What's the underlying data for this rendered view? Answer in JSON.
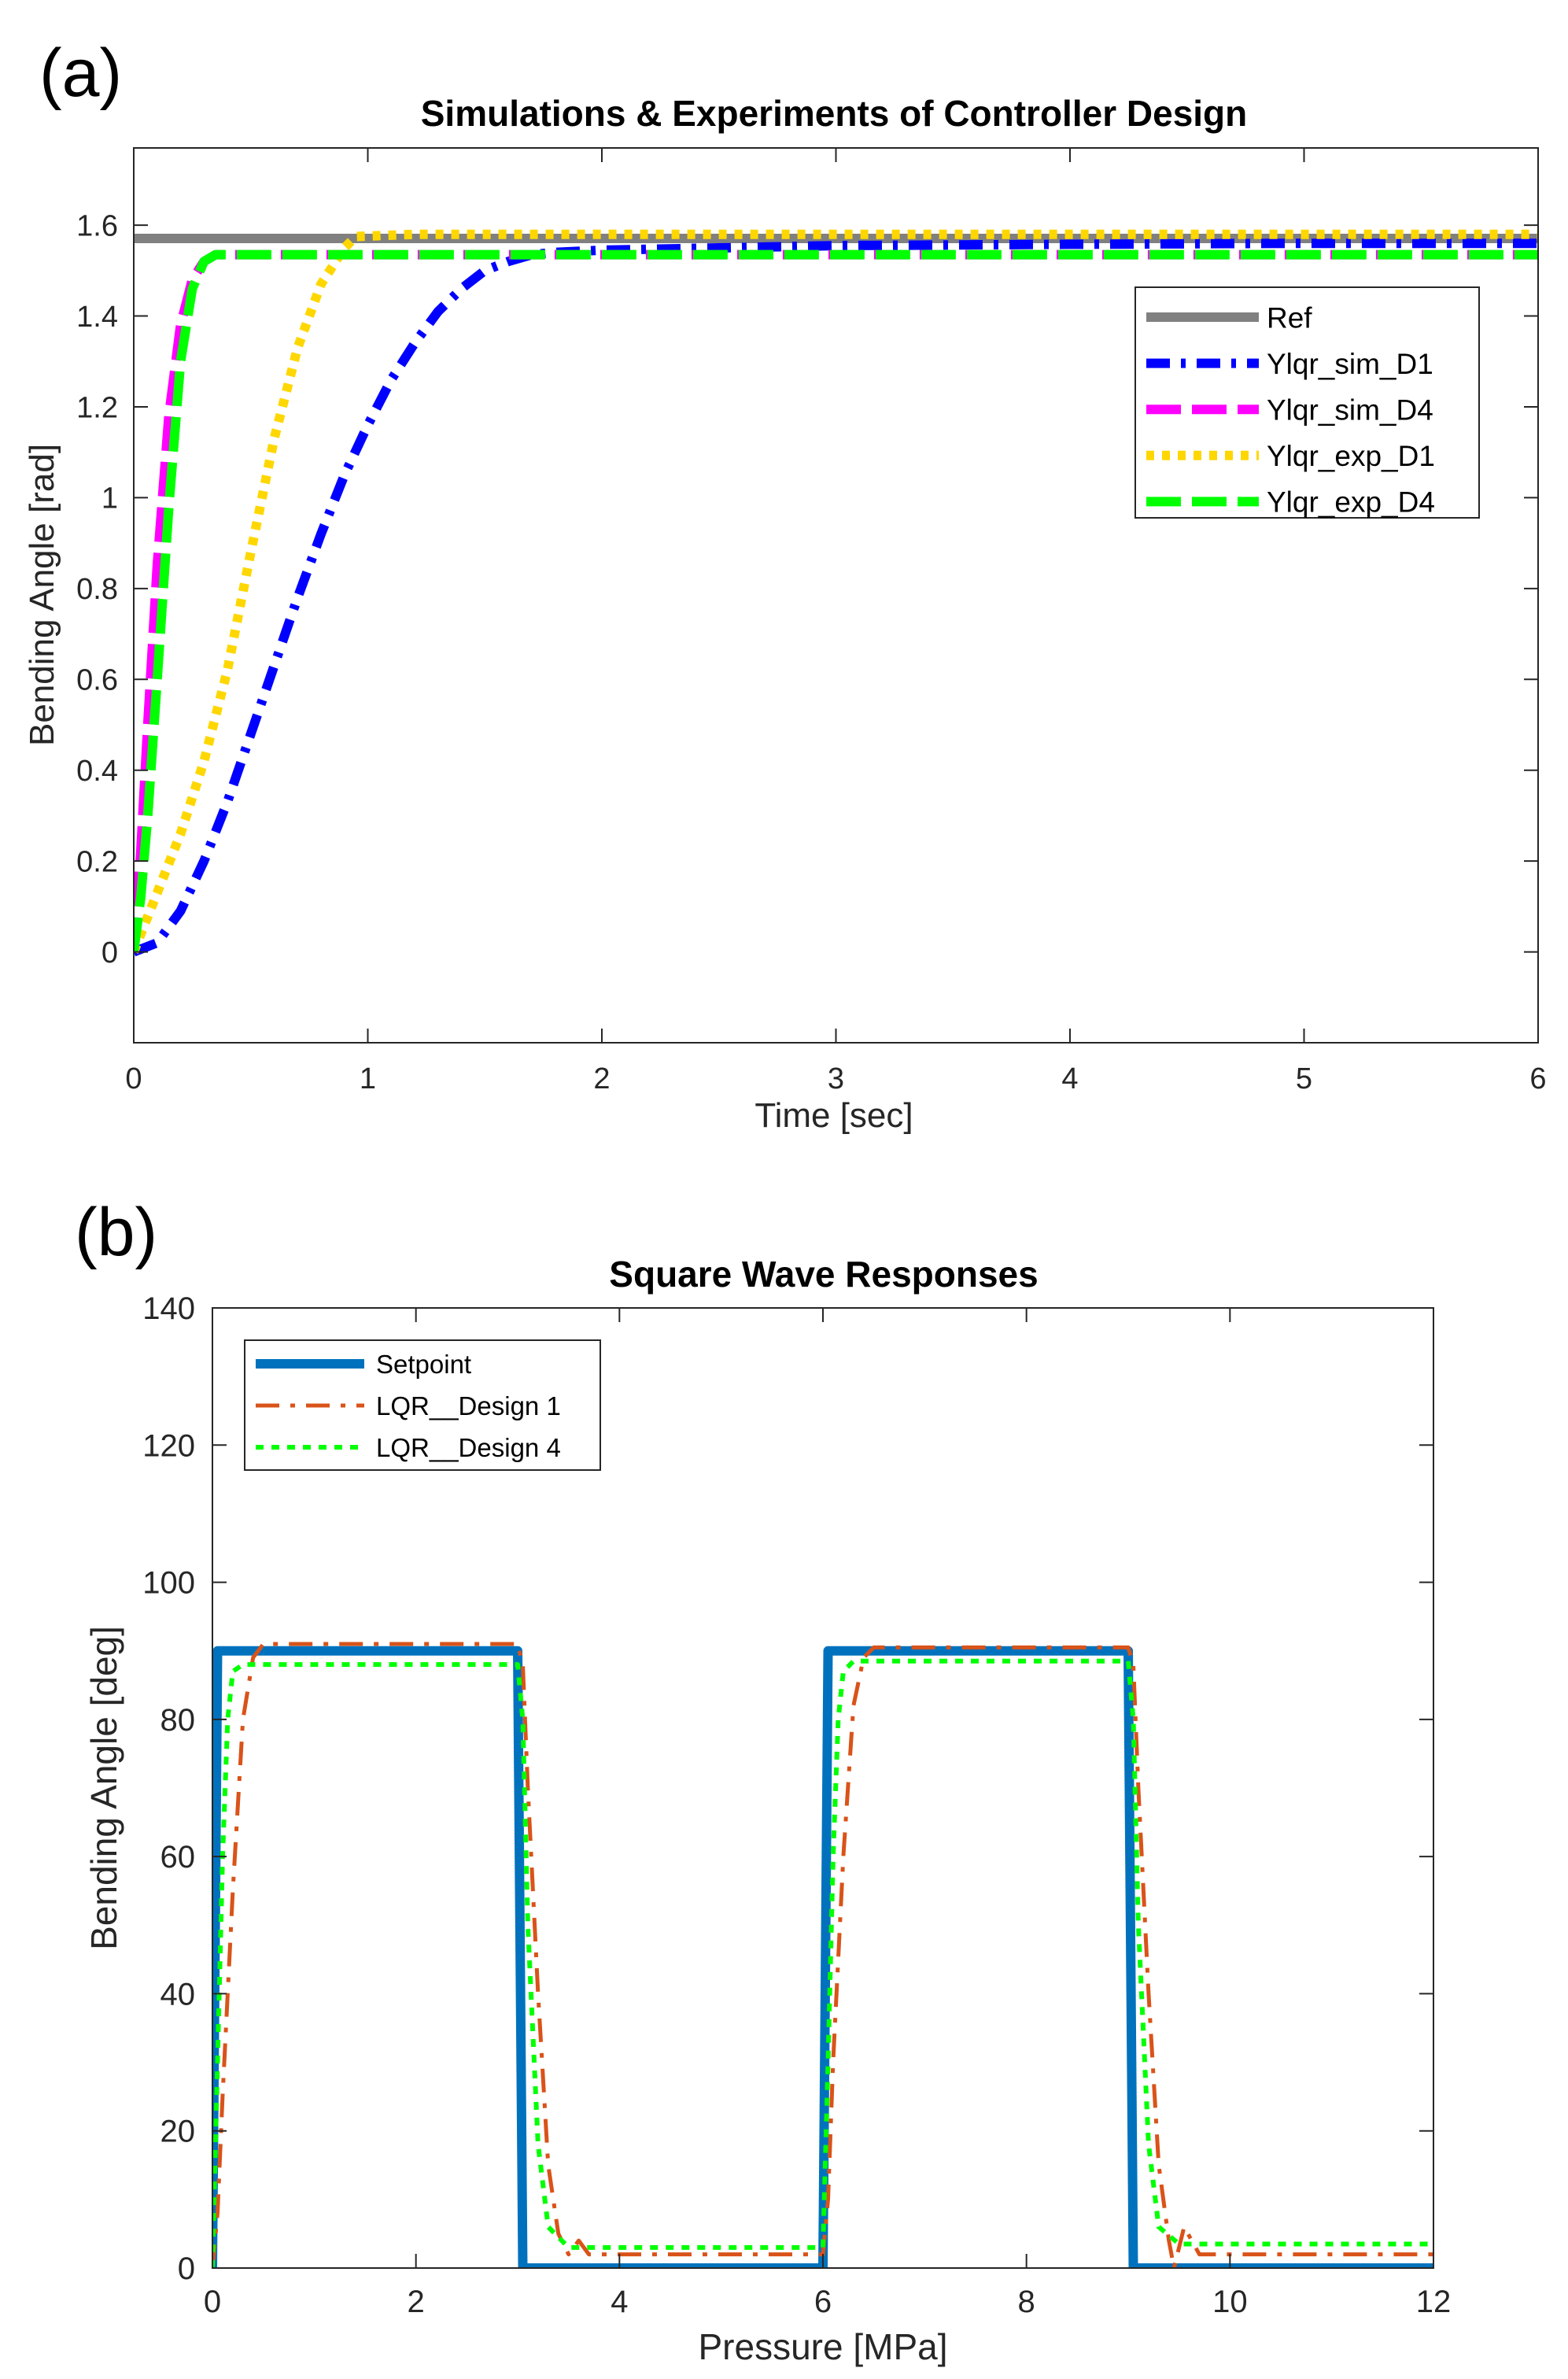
{
  "panels": {
    "a": {
      "letter": "(a)",
      "title": "Simulations & Experiments of Controller Design",
      "xlabel": "Time [sec]",
      "ylabel": "Bending Angle [rad]",
      "xticks": [
        "0",
        "1",
        "2",
        "3",
        "4",
        "5",
        "6"
      ],
      "yticks": [
        "0",
        "0.2",
        "0.4",
        "0.6",
        "0.8",
        "1",
        "1.2",
        "1.4",
        "1.6"
      ]
    },
    "b": {
      "letter": "(b)",
      "title": "Square Wave Responses",
      "xlabel": "Pressure [MPa]",
      "ylabel": "Bending Angle [deg]",
      "xticks": [
        "0",
        "2",
        "4",
        "6",
        "8",
        "10",
        "12"
      ],
      "yticks": [
        "0",
        "20",
        "40",
        "60",
        "80",
        "100",
        "120",
        "140"
      ]
    }
  },
  "chart_data": [
    {
      "type": "line",
      "title": "Simulations & Experiments of Controller Design",
      "xlabel": "Time [sec]",
      "ylabel": "Bending Angle [rad]",
      "xlim": [
        0,
        6
      ],
      "ylim": [
        -0.2,
        1.77
      ],
      "legend_position": "upper-right",
      "series": [
        {
          "name": "Ref",
          "color": "#808080",
          "dash": "solid",
          "x": [
            0,
            6
          ],
          "y": [
            1.5708,
            1.5708
          ]
        },
        {
          "name": "Ylqr_sim_D1",
          "color": "#0000ff",
          "dash": "dashdot",
          "x": [
            0,
            0.1,
            0.2,
            0.3,
            0.4,
            0.5,
            0.6,
            0.7,
            0.8,
            0.9,
            1.0,
            1.1,
            1.2,
            1.3,
            1.4,
            1.5,
            1.6,
            1.7,
            1.8,
            2.0,
            2.5,
            3,
            4,
            5,
            6
          ],
          "y": [
            0,
            0.02,
            0.09,
            0.2,
            0.33,
            0.48,
            0.63,
            0.78,
            0.92,
            1.05,
            1.16,
            1.26,
            1.34,
            1.41,
            1.46,
            1.5,
            1.52,
            1.535,
            1.54,
            1.545,
            1.55,
            1.555,
            1.558,
            1.56,
            1.56
          ]
        },
        {
          "name": "Ylqr_sim_D4",
          "color": "#ff00ff",
          "dash": "longdash",
          "x": [
            0,
            0.03,
            0.06,
            0.1,
            0.15,
            0.2,
            0.25,
            0.3,
            0.35,
            1,
            2,
            3,
            4,
            5,
            6
          ],
          "y": [
            0,
            0.22,
            0.5,
            0.85,
            1.18,
            1.38,
            1.48,
            1.52,
            1.535,
            1.535,
            1.535,
            1.535,
            1.535,
            1.535,
            1.535
          ]
        },
        {
          "name": "Ylqr_exp_D1",
          "color": "#ffd700",
          "dash": "dotted",
          "x": [
            0,
            0.1,
            0.2,
            0.3,
            0.4,
            0.5,
            0.6,
            0.7,
            0.8,
            0.9,
            0.95,
            1.2,
            2,
            3,
            4,
            5,
            6
          ],
          "y": [
            0,
            0.13,
            0.26,
            0.42,
            0.62,
            0.88,
            1.13,
            1.33,
            1.47,
            1.55,
            1.575,
            1.58,
            1.58,
            1.58,
            1.58,
            1.58,
            1.58
          ]
        },
        {
          "name": "Ylqr_exp_D4",
          "color": "#00ff00",
          "dash": "longdash",
          "x": [
            0,
            0.03,
            0.06,
            0.1,
            0.15,
            0.2,
            0.25,
            0.3,
            0.35,
            1,
            2,
            3,
            4,
            5,
            6
          ],
          "y": [
            0,
            0.12,
            0.3,
            0.6,
            0.98,
            1.3,
            1.46,
            1.52,
            1.535,
            1.535,
            1.535,
            1.535,
            1.535,
            1.535,
            1.535
          ]
        }
      ]
    },
    {
      "type": "line",
      "title": "Square Wave Responses",
      "xlabel": "Pressure [MPa]",
      "ylabel": "Bending Angle [deg]",
      "xlim": [
        0,
        12
      ],
      "ylim": [
        0,
        140
      ],
      "legend_position": "upper-left",
      "series": [
        {
          "name": "Setpoint",
          "color": "#0072bd",
          "dash": "solid",
          "x": [
            0,
            0.05,
            3.0,
            3.05,
            6.0,
            6.05,
            9.0,
            9.05,
            12
          ],
          "y": [
            0,
            90,
            90,
            0,
            0,
            90,
            90,
            0,
            0
          ]
        },
        {
          "name": "LQR__Design 1",
          "color": "#d95319",
          "dash": "dashdot",
          "x": [
            0,
            0.05,
            0.1,
            0.2,
            0.3,
            0.4,
            0.5,
            3.0,
            3.05,
            3.1,
            3.2,
            3.3,
            3.4,
            3.5,
            3.6,
            3.7,
            4.0,
            6.0,
            6.05,
            6.1,
            6.2,
            6.3,
            6.4,
            6.5,
            9.0,
            9.05,
            9.1,
            9.2,
            9.3,
            9.4,
            9.45,
            9.55,
            9.7,
            10,
            12
          ],
          "y": [
            0,
            8,
            25,
            55,
            80,
            89,
            91,
            91,
            88,
            70,
            40,
            15,
            5,
            2,
            4,
            2,
            2,
            2,
            10,
            30,
            60,
            82,
            89,
            90.5,
            90.5,
            88,
            70,
            40,
            15,
            4,
            0,
            6,
            2,
            2,
            2
          ]
        },
        {
          "name": "LQR__Design 4",
          "color": "#00ff00",
          "dash": "dotted",
          "x": [
            0,
            0.05,
            0.1,
            0.15,
            0.2,
            0.3,
            3.0,
            3.05,
            3.1,
            3.2,
            3.3,
            3.5,
            4,
            6.0,
            6.05,
            6.1,
            6.15,
            6.2,
            6.3,
            9.0,
            9.05,
            9.1,
            9.2,
            9.3,
            9.5,
            10,
            12
          ],
          "y": [
            0,
            30,
            60,
            80,
            87,
            88,
            88,
            80,
            50,
            18,
            6,
            3,
            3,
            3,
            30,
            60,
            80,
            87,
            88.5,
            88.5,
            80,
            50,
            18,
            6,
            3.5,
            3.5,
            3.5
          ]
        }
      ]
    }
  ]
}
